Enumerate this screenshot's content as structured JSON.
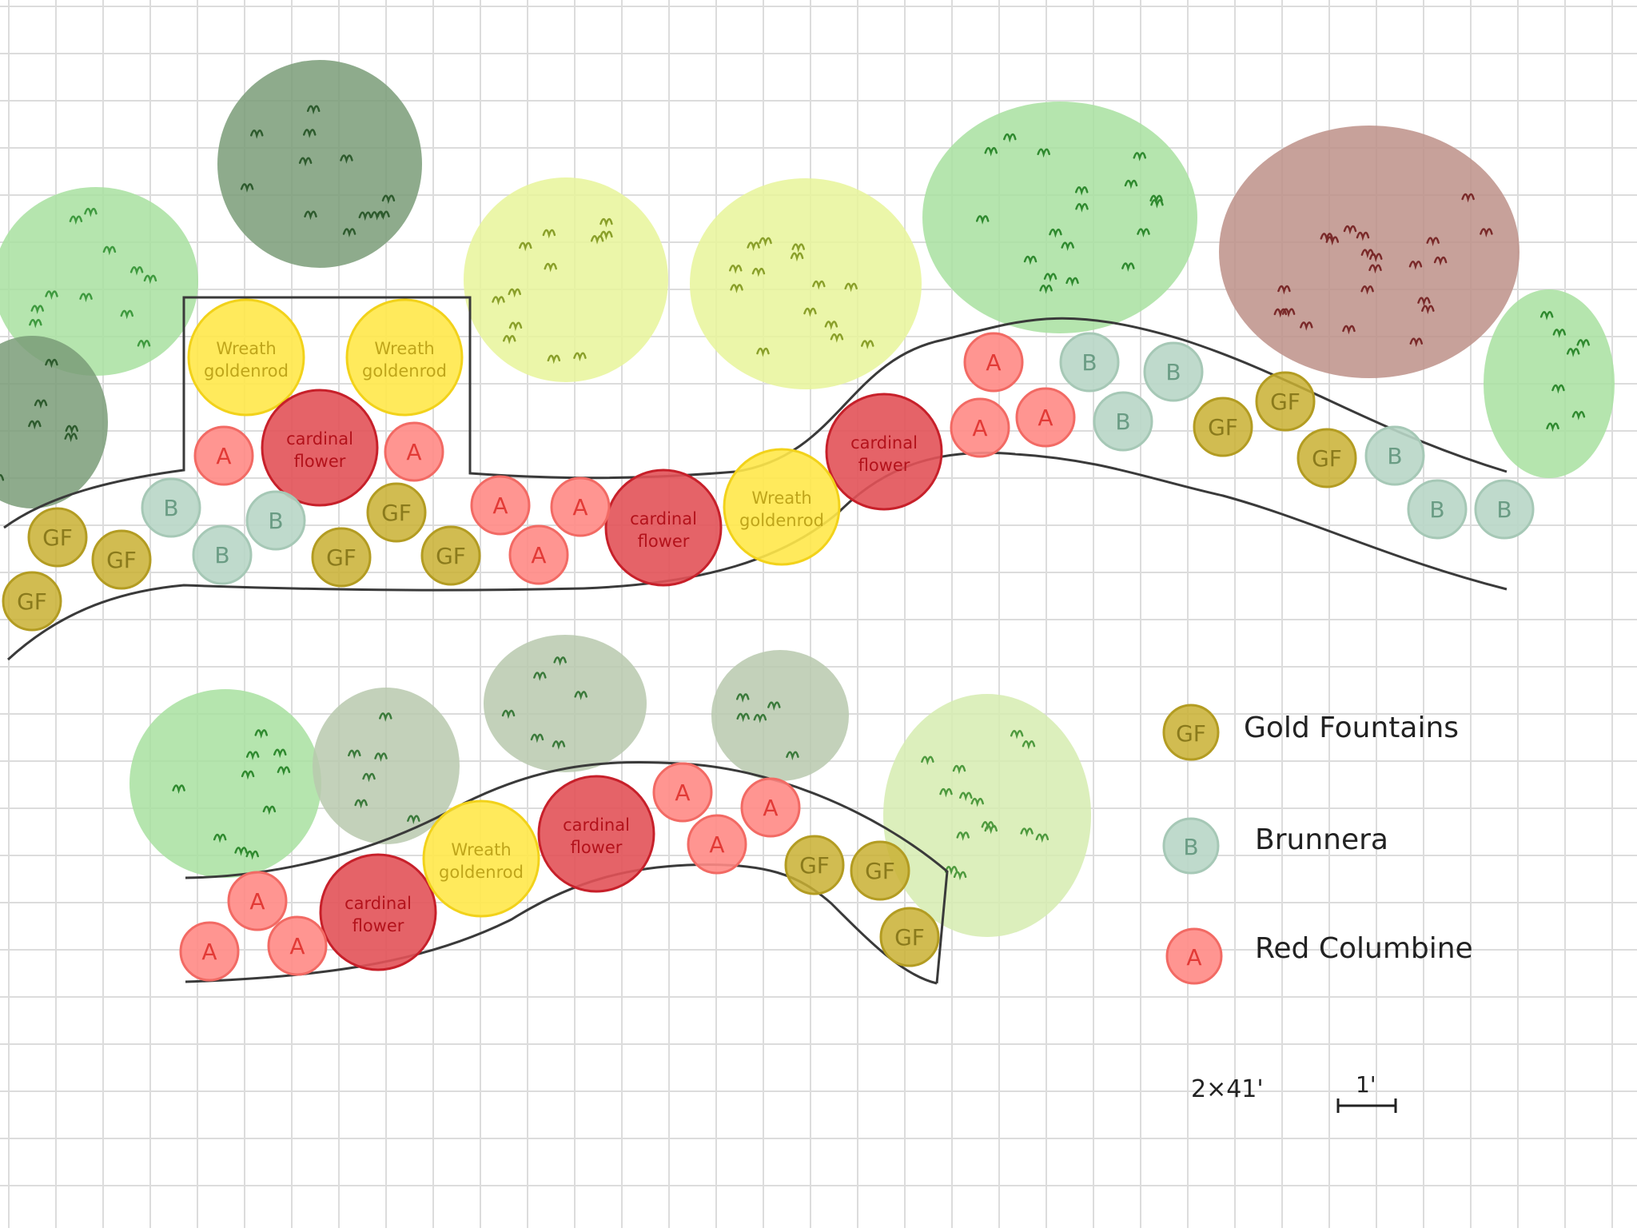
{
  "colors": {
    "grid": "#dcdcdc",
    "path_stroke": "#3a3a3a",
    "gold_fountains": "#c9b033",
    "gold_fountains_text": "#8a7a1c",
    "brunnera": "#b8d6c7",
    "brunnera_text": "#6a9c84",
    "red_columbine": "#ff8a85",
    "red_columbine_text": "#e23a36",
    "cardinal_flower": "#e25258",
    "cardinal_flower_text": "#b3121b",
    "wreath_goldenrod": "#ffe84a",
    "wreath_goldenrod_text": "#bfa51a",
    "shrub_light_green": "#a8e0a0",
    "shrub_dark_green": "#7a9c78",
    "shrub_yellow_green": "#e8f59a",
    "shrub_brown": "#bd9088",
    "shrub_sage": "#b4c7a8"
  },
  "plants": {
    "gold_fountains_abbr": "GF",
    "brunnera_abbr": "B",
    "red_columbine_abbr": "A",
    "cardinal_flower_line1": "cardinal",
    "cardinal_flower_line2": "flower",
    "wreath_goldenrod_line1": "Wreath",
    "wreath_goldenrod_line2": "goldenrod"
  },
  "legend": {
    "items": [
      {
        "abbr": "GF",
        "label": "Gold Fountains"
      },
      {
        "abbr": "B",
        "label": "Brunnera"
      },
      {
        "abbr": "A",
        "label": "Red Columbine"
      }
    ]
  },
  "scale": {
    "bed_size": "2×41'",
    "unit": "1'"
  }
}
